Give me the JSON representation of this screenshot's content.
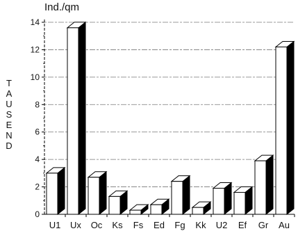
{
  "chart_data": {
    "type": "bar",
    "unit_label": "Ind./qm",
    "scale_word": "TAUSEND",
    "categories": [
      "U1",
      "Ux",
      "Oc",
      "Ks",
      "Fs",
      "Ed",
      "Fg",
      "Kk",
      "U2",
      "Ef",
      "Gr",
      "Au"
    ],
    "values": [
      3,
      13.6,
      2.7,
      1.3,
      0.3,
      0.7,
      2.4,
      0.5,
      1.9,
      1.6,
      3.9,
      12.2
    ],
    "y_ticks": [
      "0",
      "2",
      "4",
      "6",
      "8",
      "10",
      "12",
      "14"
    ],
    "ylim": [
      0,
      14
    ],
    "grid": true,
    "bar_front_color": "#ffffff",
    "bar_side_color": "#000000"
  }
}
